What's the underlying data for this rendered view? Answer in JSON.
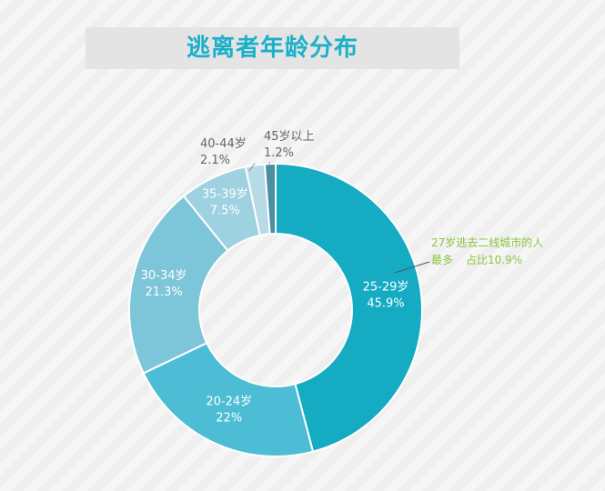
{
  "title": "逃离者年龄分布",
  "chart_data": {
    "type": "donut",
    "title": "逃离者年龄分布",
    "slices": [
      {
        "label": "25-29岁",
        "value": 45.9,
        "display": "45.9%",
        "color": "#14abc3"
      },
      {
        "label": "20-24岁",
        "value": 22.0,
        "display": "22%",
        "color": "#4cbdd4"
      },
      {
        "label": "30-34岁",
        "value": 21.3,
        "display": "21.3%",
        "color": "#7dc5d8"
      },
      {
        "label": "35-39岁",
        "value": 7.5,
        "display": "7.5%",
        "color": "#9fd2e0"
      },
      {
        "label": "40-44岁",
        "value": 2.1,
        "display": "2.1%",
        "color": "#b6dbe6"
      },
      {
        "label": "45岁以上",
        "value": 1.2,
        "display": "1.2%",
        "color": "#4a8fa0"
      }
    ],
    "annotation": {
      "line1": "27岁逃去二线城市的人",
      "line2a": "最多",
      "line2b": "占比10.9%",
      "color": "#8cc63f"
    }
  }
}
